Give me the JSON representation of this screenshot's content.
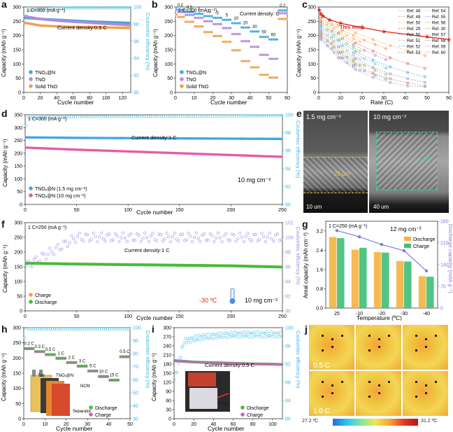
{
  "figure": {
    "colors": {
      "blue_series": "#3fa9df",
      "purple_series": "#b58bd6",
      "orange_series": "#f0a04b",
      "pink_series": "#e85aa8",
      "green_series": "#3fbf3a",
      "ce_color": "#5bc8e8",
      "ce_purple": "#9c8fe0",
      "red_this_work": "#e2231a"
    }
  },
  "panels": {
    "a": {
      "label": "a",
      "ylabel": "Capacity (mAh g⁻¹)",
      "y2label": "Coulombic efficiency (%)",
      "xlabel": "Cycle number",
      "rate_note": "1 C=300 (mA g⁻¹)",
      "current_note": "Current density:0.5 C",
      "xticks": [
        "0",
        "20",
        "40",
        "60",
        "80",
        "100",
        "120"
      ],
      "yticks": [
        "0",
        "50",
        "100",
        "150",
        "200",
        "250",
        "300"
      ],
      "y2ticks": [
        "90",
        "92",
        "94",
        "96",
        "98",
        "100"
      ],
      "legend": [
        "TNOₓ@N",
        "TNO",
        "Solid TNO"
      ]
    },
    "b": {
      "label": "b",
      "ylabel": "Capacity (mAh g⁻¹)",
      "xlabel": "Cycle number",
      "rate_note": "1 C=300 (mA g⁻¹)",
      "current_note": "Current density: C",
      "xticks": [
        "0",
        "10",
        "20",
        "30",
        "40",
        "50",
        "60"
      ],
      "yticks": [
        "0",
        "50",
        "100",
        "150",
        "200",
        "250",
        "300"
      ],
      "rate_labels": [
        "0.2",
        "0.5",
        "1",
        "2",
        "3",
        "5",
        "10",
        "20",
        "30",
        "50",
        "60",
        "0.2"
      ],
      "legend": [
        "TNOₓ@N",
        "TNO",
        "Solid TNO"
      ]
    },
    "c": {
      "label": "c",
      "ylabel": "Capacity (mAh g⁻¹)",
      "xlabel": "Rate (C)",
      "xticks": [
        "0",
        "10",
        "20",
        "30",
        "40",
        "50",
        "60"
      ],
      "yticks": [
        "0",
        "50",
        "100",
        "150",
        "200",
        "250",
        "300"
      ],
      "this_work": "This work",
      "refs_left": [
        "Ref. 48",
        "Ref. 49",
        "Ref. 50",
        "Ref. 29",
        "Ref. 50",
        "Ref. 51",
        "Ref. 52",
        "Ref. 53"
      ],
      "refs_right": [
        "Ref. 54",
        "Ref. 55",
        "Ref. 56",
        "Ref. 30",
        "Ref. 57",
        "Ref. 58",
        "Ref. 59",
        "Ref. 60"
      ]
    },
    "d": {
      "label": "d",
      "ylabel": "Capacity (mAh g⁻¹)",
      "y2label": "Coulombic efficiency (%)",
      "xlabel": "Cycle number",
      "rate_note": "1 C=300 (mA g⁻¹)",
      "current_note": "Current density:1 C",
      "loading_note": "10 mg cm⁻²",
      "xticks": [
        "0",
        "50",
        "100",
        "150",
        "200",
        "250"
      ],
      "yticks": [
        "0",
        "50",
        "100",
        "150",
        "200",
        "250",
        "300",
        "350"
      ],
      "y2ticks": [
        "90",
        "92",
        "94",
        "96",
        "98",
        "100"
      ],
      "legend": [
        "TNOₓ@N (1.5 mg cm⁻²)",
        "TNOₓ@N (10 mg cm⁻²)"
      ]
    },
    "e": {
      "label": "e",
      "left_title": "1.5 mg cm⁻²",
      "right_title": "10 mg cm⁻²",
      "left_thickness": "20 μm",
      "right_thickness": "1.1 μm",
      "left_scale": "10 um",
      "right_scale": "40 um"
    },
    "f": {
      "label": "f",
      "ylabel": "Capacity (mAh g⁻¹)",
      "y2label": "Coulombic efficiency (%)",
      "xlabel": "Cycle number",
      "rate_note": "1 C=250 (mA g⁻¹)",
      "current_note": "Current density:1 C",
      "temp_note": "-30 ºC",
      "loading_note": "10 mg cm⁻²",
      "xticks": [
        "0",
        "50",
        "100",
        "150",
        "200",
        "250"
      ],
      "yticks": [
        "0",
        "50",
        "100",
        "150",
        "200",
        "250",
        "300"
      ],
      "y2ticks": [
        "90",
        "92",
        "94",
        "96",
        "98",
        "100",
        "102"
      ],
      "legend": [
        "Charge",
        "Discharge"
      ]
    },
    "g": {
      "label": "g",
      "ylabel": "Areal capacity (mAh cm⁻²)",
      "y2label": "Discharge capacity (mAh g⁻¹)",
      "xlabel": "Temperature (ºC)",
      "rate_note": "1 C=250 (mA g⁻¹)",
      "loading_note": "12 mg cm⁻²",
      "yticks": [
        "0.0",
        "0.8",
        "1.6",
        "2.4",
        "3.2"
      ],
      "y2ticks": [
        "0",
        "70",
        "140",
        "210",
        "280"
      ],
      "legend": [
        "Discharge",
        "Charge"
      ]
    },
    "h": {
      "label": "h",
      "ylabel": "Capacity (mAh g⁻¹)",
      "y2label": "Coulombic efficiency (%)",
      "xlabel": "Cycle number",
      "xticks": [
        "0",
        "10",
        "20",
        "30",
        "40",
        "50"
      ],
      "yticks": [
        "0",
        "50",
        "100",
        "150",
        "200",
        "250",
        "300"
      ],
      "y2ticks": [
        "30",
        "40",
        "50",
        "60",
        "70",
        "80",
        "90",
        "100"
      ],
      "rate_labels": [
        "0.2 C",
        "0.3 C",
        "0.5 C",
        "1 C",
        "2 C",
        "3 C",
        "5 C",
        "10 C",
        "15 C",
        "0.5 C"
      ],
      "inset_labels": [
        "Tab",
        "TNOₓ@N",
        "NCM",
        "Separator"
      ],
      "legend": [
        "Discharge",
        "Charge"
      ]
    },
    "i": {
      "label": "i",
      "ylabel": "Capacity (mAh g⁻¹)",
      "y2label": "Coulombic efficiency (%)",
      "xlabel": "Cycle number",
      "current_note": "Current density:0.5 C",
      "xticks": [
        "0",
        "20",
        "40",
        "60",
        "80",
        "100"
      ],
      "yticks": [
        "0",
        "30",
        "60",
        "90",
        "120",
        "150",
        "180",
        "210",
        "240",
        "270",
        "300"
      ],
      "y2ticks": [
        "80",
        "84",
        "88",
        "92",
        "96",
        "100"
      ],
      "legend": [
        "Discharge",
        "Charge"
      ]
    },
    "j": {
      "label": "j",
      "row_labels": [
        "0.5 C",
        "1.0 C"
      ],
      "scale_min": "27.2 ºC",
      "scale_max": "31.2 ºC"
    }
  },
  "chart_data": [
    {
      "panel": "a",
      "type": "line",
      "title": "",
      "xlabel": "Cycle number",
      "ylabel": "Capacity (mAh g⁻¹)",
      "xlim": [
        0,
        130
      ],
      "ylim": [
        0,
        300
      ],
      "y2lim": [
        90,
        100
      ],
      "series": [
        {
          "name": "TNOₓ@N",
          "x": [
            0,
            20,
            40,
            60,
            80,
            100,
            120,
            130
          ],
          "values": [
            262,
            258,
            255,
            252,
            249,
            247,
            245,
            244
          ]
        },
        {
          "name": "TNO",
          "x": [
            0,
            20,
            40,
            60,
            80,
            100,
            120,
            130
          ],
          "values": [
            268,
            258,
            252,
            248,
            245,
            241,
            238,
            236
          ]
        },
        {
          "name": "Solid TNO",
          "x": [
            0,
            20,
            40,
            60,
            80,
            100,
            120,
            130
          ],
          "values": [
            245,
            235,
            232,
            230,
            229,
            228,
            227,
            226
          ]
        },
        {
          "name": "Coulombic efficiency",
          "x": [
            0,
            5,
            20,
            60,
            100,
            130
          ],
          "values": [
            97.5,
            99.6,
            99.8,
            99.9,
            99.9,
            99.9
          ],
          "axis": "y2"
        }
      ]
    },
    {
      "panel": "b",
      "type": "line",
      "xlabel": "Cycle number",
      "ylabel": "Capacity (mAh g⁻¹)",
      "xlim": [
        0,
        60
      ],
      "ylim": [
        0,
        300
      ],
      "categories": [
        "0.2",
        "0.5",
        "1",
        "2",
        "3",
        "5",
        "10",
        "20",
        "30",
        "50",
        "60",
        "0.2"
      ],
      "series": [
        {
          "name": "TNOₓ@N",
          "values": [
            290,
            282,
            276,
            268,
            262,
            255,
            243,
            228,
            214,
            195,
            186,
            288
          ]
        },
        {
          "name": "TNO",
          "values": [
            282,
            272,
            262,
            250,
            240,
            226,
            205,
            180,
            160,
            132,
            118,
            278
          ]
        },
        {
          "name": "Solid TNO",
          "values": [
            265,
            248,
            232,
            212,
            198,
            178,
            148,
            110,
            88,
            62,
            52,
            258
          ]
        }
      ]
    },
    {
      "panel": "c",
      "type": "line",
      "xlabel": "Rate (C)",
      "ylabel": "Capacity (mAh g⁻¹)",
      "xlim": [
        0,
        60
      ],
      "ylim": [
        0,
        300
      ],
      "series": [
        {
          "name": "This work",
          "x": [
            0.2,
            1,
            2,
            5,
            10,
            20,
            30,
            50,
            60
          ],
          "values": [
            290,
            276,
            268,
            255,
            243,
            228,
            214,
            195,
            186
          ]
        }
      ]
    },
    {
      "panel": "d",
      "type": "line",
      "xlabel": "Cycle number",
      "ylabel": "Capacity (mAh g⁻¹)",
      "xlim": [
        0,
        250
      ],
      "ylim": [
        0,
        350
      ],
      "y2lim": [
        90,
        100
      ],
      "series": [
        {
          "name": "TNOₓ@N (1.5 mg cm⁻²)",
          "x": [
            0,
            50,
            100,
            150,
            200,
            250
          ],
          "values": [
            262,
            260,
            259,
            258,
            257,
            256
          ]
        },
        {
          "name": "TNOₓ@N (10 mg cm⁻²)",
          "x": [
            0,
            50,
            100,
            150,
            200,
            250
          ],
          "values": [
            222,
            214,
            207,
            200,
            193,
            186
          ]
        },
        {
          "name": "Coulombic efficiency",
          "x": [
            0,
            2,
            50,
            250
          ],
          "values": [
            97.8,
            99.7,
            99.8,
            99.9
          ],
          "axis": "y2"
        }
      ]
    },
    {
      "panel": "f",
      "type": "scatter",
      "xlabel": "Cycle number",
      "ylabel": "Capacity (mAh g⁻¹)",
      "xlim": [
        0,
        250
      ],
      "ylim": [
        0,
        300
      ],
      "y2lim": [
        90,
        102
      ],
      "series": [
        {
          "name": "Charge",
          "x": [
            0,
            50,
            100,
            150,
            200,
            250
          ],
          "values": [
            163,
            160,
            158,
            156,
            154,
            150
          ]
        },
        {
          "name": "Discharge",
          "x": [
            0,
            50,
            100,
            150,
            200,
            250
          ],
          "values": [
            162,
            159,
            157,
            155,
            153,
            149
          ]
        },
        {
          "name": "Coulombic efficiency",
          "x": [
            0,
            50,
            100,
            150,
            200,
            250
          ],
          "values": [
            96,
            100,
            100,
            100,
            100,
            100
          ],
          "axis": "y2"
        }
      ]
    },
    {
      "panel": "g",
      "type": "bar",
      "xlabel": "Temperature (ºC)",
      "ylabel": "Areal capacity (mAh cm⁻²)",
      "ylim": [
        0,
        3.6
      ],
      "y2lim": [
        0,
        280
      ],
      "categories": [
        "25",
        "-10",
        "-20",
        "-30",
        "-40"
      ],
      "series": [
        {
          "name": "Discharge",
          "values": [
            2.95,
            2.42,
            2.32,
            1.95,
            1.32
          ]
        },
        {
          "name": "Charge",
          "values": [
            2.9,
            2.5,
            2.3,
            1.93,
            1.3
          ]
        },
        {
          "name": "Discharge capacity",
          "values": [
            250,
            230,
            205,
            185,
            120
          ],
          "axis": "y2"
        }
      ]
    },
    {
      "panel": "h",
      "type": "scatter",
      "xlabel": "Cycle number",
      "ylabel": "Capacity (mAh g⁻¹)",
      "xlim": [
        0,
        50
      ],
      "ylim": [
        0,
        300
      ],
      "y2lim": [
        30,
        100
      ],
      "categories": [
        "0.2 C",
        "0.3 C",
        "0.5 C",
        "1 C",
        "2 C",
        "3 C",
        "5 C",
        "10 C",
        "15 C",
        "0.5 C"
      ],
      "series": [
        {
          "name": "Discharge",
          "values": [
            232,
            222,
            212,
            200,
            186,
            174,
            158,
            140,
            128,
            205
          ]
        },
        {
          "name": "Charge",
          "values": [
            230,
            220,
            210,
            198,
            184,
            172,
            156,
            138,
            126,
            203
          ]
        }
      ]
    },
    {
      "panel": "i",
      "type": "scatter",
      "xlabel": "Cycle number",
      "ylabel": "Capacity (mAh g⁻¹)",
      "xlim": [
        0,
        110
      ],
      "ylim": [
        0,
        300
      ],
      "y2lim": [
        80,
        100
      ],
      "series": [
        {
          "name": "Discharge",
          "x": [
            0,
            20,
            40,
            60,
            80,
            100,
            110
          ],
          "values": [
            192,
            187,
            185,
            183,
            181,
            180,
            179
          ]
        },
        {
          "name": "Charge",
          "x": [
            0,
            20,
            40,
            60,
            80,
            100,
            110
          ],
          "values": [
            190,
            186,
            184,
            182,
            180,
            179,
            178
          ]
        },
        {
          "name": "Coulombic efficiency",
          "x": [
            0,
            10,
            30,
            60,
            110
          ],
          "values": [
            88,
            97,
            98,
            98.5,
            98.5
          ],
          "axis": "y2"
        }
      ]
    }
  ]
}
